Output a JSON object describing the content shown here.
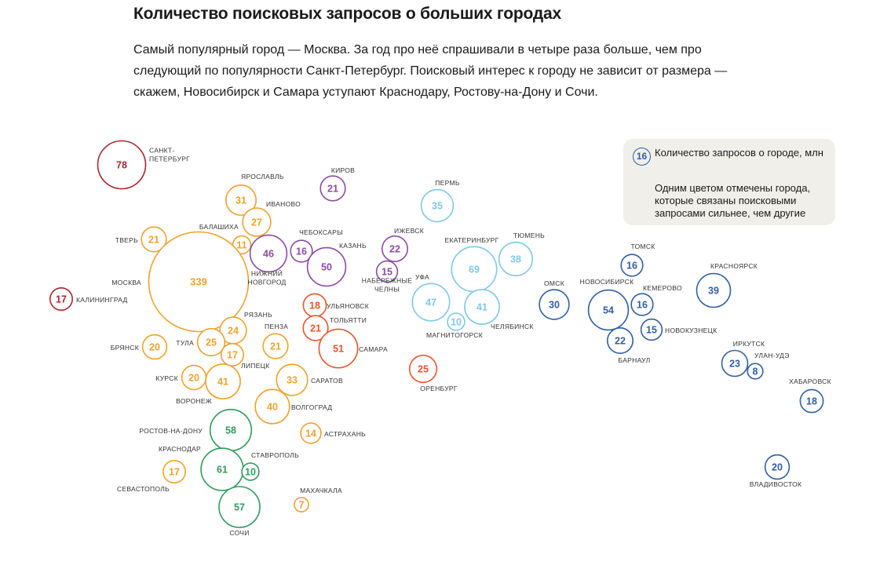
{
  "header": {
    "title": "Количество поисковых запросов о больших городах",
    "description": "Самый популярный город — Москва. За год про неё спрашивали в четыре раза больше, чем про следующий по популярности Санкт-Петербург. Поисковый интерес к городу не зависит от размера — скажем, Новосибирск и Самара уступают Краснодару, Ростову-на-Дону и Сочи."
  },
  "legend": {
    "sample_value": "16",
    "size_text": "Количество запросов о городе, млн",
    "color_text": "Одним цветом отмечены города, которые связаны поисковыми запросами сильнее, чем другие"
  },
  "colors": {
    "dark_red": "#a8262e",
    "orange": "#f0a12c",
    "purple": "#8c4aa3",
    "red_orange": "#e8542c",
    "light_blue": "#7ec8ea",
    "dark_blue": "#2f5ea3",
    "green": "#2e9b5c"
  },
  "chart_data": {
    "type": "bubble",
    "value_unit": "млн",
    "cities": [
      {
        "name": "САНКТ-\nПЕТЕРБУРГ",
        "value": 78,
        "group": "dark_red"
      },
      {
        "name": "КАЛИНИНГРАД",
        "value": 17,
        "group": "dark_red"
      },
      {
        "name": "ЯРОСЛАВЛЬ",
        "value": 31,
        "group": "orange"
      },
      {
        "name": "ИВАНОВО",
        "value": 27,
        "group": "orange"
      },
      {
        "name": "ТВЕРЬ",
        "value": 21,
        "group": "orange"
      },
      {
        "name": "БАЛАШИХА",
        "value": 11,
        "group": "orange"
      },
      {
        "name": "МОСКВА",
        "value": 339,
        "group": "orange"
      },
      {
        "name": "РЯЗАНЬ",
        "value": 24,
        "group": "orange"
      },
      {
        "name": "ТУЛА",
        "value": 25,
        "group": "orange"
      },
      {
        "name": "ЛИПЕЦК",
        "value": 17,
        "group": "orange"
      },
      {
        "name": "БРЯНСК",
        "value": 20,
        "group": "orange"
      },
      {
        "name": "ПЕНЗА",
        "value": 21,
        "group": "orange"
      },
      {
        "name": "КУРСК",
        "value": 20,
        "group": "orange"
      },
      {
        "name": "ВОРОНЕЖ",
        "value": 41,
        "group": "orange"
      },
      {
        "name": "САРАТОВ",
        "value": 33,
        "group": "orange"
      },
      {
        "name": "ВОЛГОГРАД",
        "value": 40,
        "group": "orange"
      },
      {
        "name": "АСТРАХАНЬ",
        "value": 14,
        "group": "orange"
      },
      {
        "name": "СЕВАСТОПОЛЬ",
        "value": 17,
        "group": "orange"
      },
      {
        "name": "МАХАЧКАЛА",
        "value": 7,
        "group": "orange"
      },
      {
        "name": "КИРОВ",
        "value": 21,
        "group": "purple"
      },
      {
        "name": "ЧЕБОКСАРЫ",
        "value": 16,
        "group": "purple"
      },
      {
        "name": "НИЖНИЙ\nНОВГОРОД",
        "value": 46,
        "group": "purple"
      },
      {
        "name": "КАЗАНЬ",
        "value": 50,
        "group": "purple"
      },
      {
        "name": "ИЖЕВСК",
        "value": 22,
        "group": "purple"
      },
      {
        "name": "НАБЕРЕЖНЫЕ\nЧЕЛНЫ",
        "value": 15,
        "group": "purple"
      },
      {
        "name": "УЛЬЯНОВСК",
        "value": 18,
        "group": "red_orange"
      },
      {
        "name": "ТОЛЬЯТТИ",
        "value": 21,
        "group": "red_orange"
      },
      {
        "name": "САМАРА",
        "value": 51,
        "group": "red_orange"
      },
      {
        "name": "ОРЕНБУРГ",
        "value": 25,
        "group": "red_orange"
      },
      {
        "name": "ПЕРМЬ",
        "value": 35,
        "group": "light_blue"
      },
      {
        "name": "ЕКАТЕРИНБУРГ",
        "value": 69,
        "group": "light_blue"
      },
      {
        "name": "ТЮМЕНЬ",
        "value": 38,
        "group": "light_blue"
      },
      {
        "name": "УФА",
        "value": 47,
        "group": "light_blue"
      },
      {
        "name": "ЧЕЛЯБИНСК",
        "value": 41,
        "group": "light_blue"
      },
      {
        "name": "МАГНИТОГОРСК",
        "value": 10,
        "group": "light_blue"
      },
      {
        "name": "ОМСК",
        "value": 30,
        "group": "dark_blue"
      },
      {
        "name": "ТОМСК",
        "value": 16,
        "group": "dark_blue"
      },
      {
        "name": "НОВОСИБИРСК",
        "value": 54,
        "group": "dark_blue"
      },
      {
        "name": "КЕМЕРОВО",
        "value": 16,
        "group": "dark_blue"
      },
      {
        "name": "НОВОКУЗНЕЦК",
        "value": 15,
        "group": "dark_blue"
      },
      {
        "name": "БАРНАУЛ",
        "value": 22,
        "group": "dark_blue"
      },
      {
        "name": "КРАСНОЯРСК",
        "value": 39,
        "group": "dark_blue"
      },
      {
        "name": "ИРКУТСК",
        "value": 23,
        "group": "dark_blue"
      },
      {
        "name": "УЛАН-УДЭ",
        "value": 8,
        "group": "dark_blue"
      },
      {
        "name": "ХАБАРОВСК",
        "value": 18,
        "group": "dark_blue"
      },
      {
        "name": "ВЛАДИВОСТОК",
        "value": 20,
        "group": "dark_blue"
      },
      {
        "name": "РОСТОВ-НА-ДОНУ",
        "value": 58,
        "group": "green"
      },
      {
        "name": "КРАСНОДАР",
        "value": 61,
        "group": "green"
      },
      {
        "name": "СТАВРОПОЛЬ",
        "value": 10,
        "group": "green"
      },
      {
        "name": "СОЧИ",
        "value": 57,
        "group": "green"
      }
    ]
  }
}
